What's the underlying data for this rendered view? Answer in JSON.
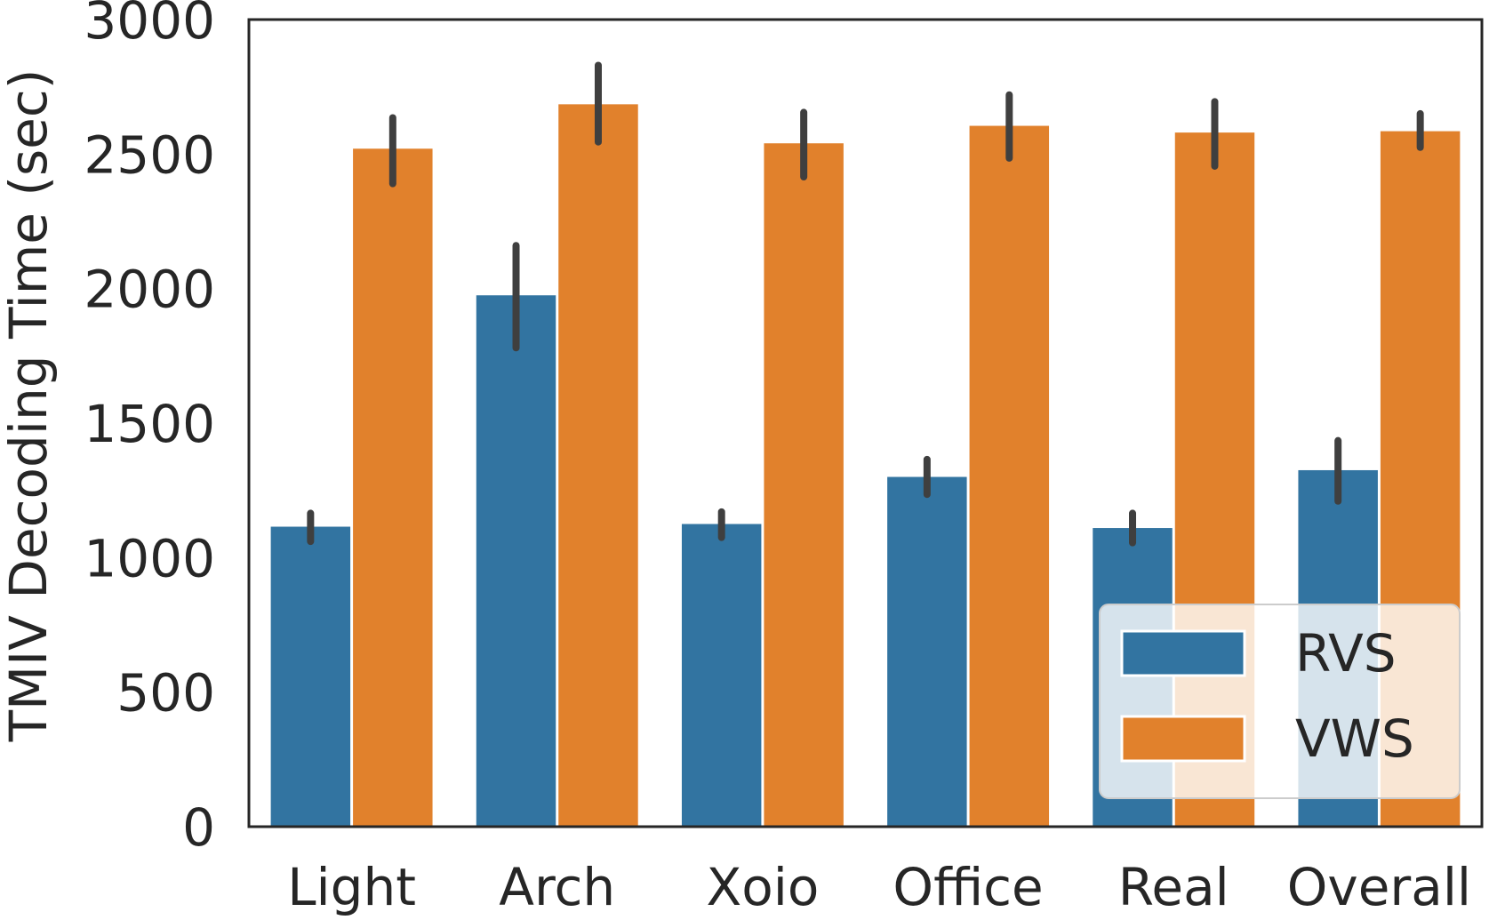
{
  "chart_data": {
    "type": "bar",
    "title": "",
    "xlabel": "",
    "ylabel": "TMIV Decoding Time (sec)",
    "ylim": [
      0,
      3000
    ],
    "yticks": [
      0,
      500,
      1000,
      1500,
      2000,
      2500,
      3000
    ],
    "grid": false,
    "legend_position": "bottom-right",
    "categories": [
      "Light",
      "Arch",
      "Xoio",
      "Office",
      "Real",
      "Overall"
    ],
    "series": [
      {
        "name": "RVS",
        "color": "#3274a1",
        "values": [
          1115,
          1975,
          1125,
          1300,
          1110,
          1325
        ],
        "error_low": [
          1060,
          1780,
          1075,
          1235,
          1055,
          1210
        ],
        "error_high": [
          1165,
          2160,
          1170,
          1365,
          1165,
          1435
        ]
      },
      {
        "name": "VWS",
        "color": "#e1812c",
        "values": [
          2520,
          2685,
          2540,
          2605,
          2580,
          2585
        ],
        "error_low": [
          2390,
          2545,
          2415,
          2485,
          2455,
          2525
        ],
        "error_high": [
          2635,
          2830,
          2655,
          2720,
          2695,
          2650
        ]
      }
    ]
  }
}
